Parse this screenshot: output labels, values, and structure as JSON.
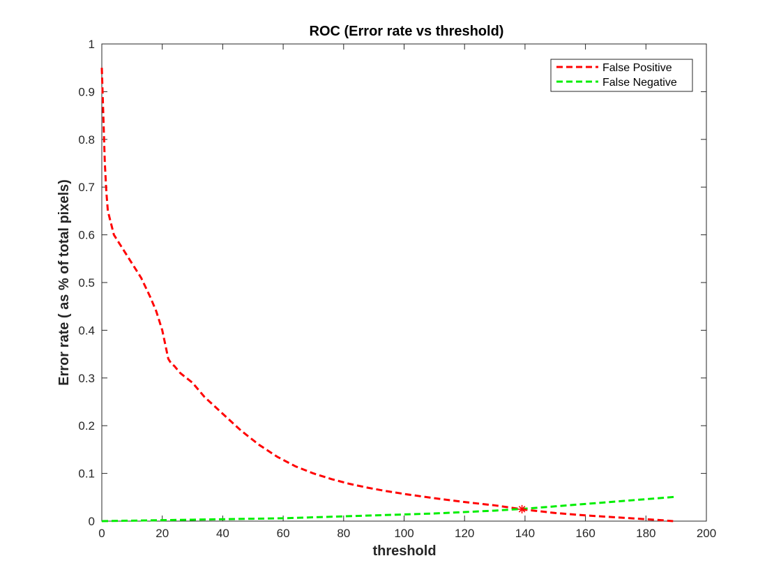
{
  "chart_data": {
    "type": "line",
    "title": "ROC (Error rate vs threshold)",
    "xlabel": "threshold",
    "ylabel": "Error rate ( as % of total pixels)",
    "xlim": [
      0,
      200
    ],
    "ylim": [
      0,
      1
    ],
    "x_ticks": [
      "0",
      "20",
      "40",
      "60",
      "80",
      "100",
      "120",
      "140",
      "160",
      "180",
      "200"
    ],
    "y_ticks": [
      "0",
      "0.1",
      "0.2",
      "0.3",
      "0.4",
      "0.5",
      "0.6",
      "0.7",
      "0.8",
      "0.9",
      "1"
    ],
    "grid": false,
    "legend_position": "top-right",
    "series": [
      {
        "name": "False Positive",
        "color": "#ff0000",
        "style": "dashed",
        "x": [
          0,
          0.5,
          1,
          1.5,
          2,
          4,
          7,
          10,
          13,
          16,
          18,
          20,
          21,
          22,
          23,
          24,
          26,
          30,
          34,
          40,
          46,
          52,
          58,
          64,
          70,
          76,
          82,
          88,
          94,
          100,
          110,
          120,
          130,
          140,
          150,
          160,
          170,
          180,
          185,
          189
        ],
        "y": [
          0.95,
          0.85,
          0.75,
          0.69,
          0.65,
          0.6,
          0.57,
          0.54,
          0.51,
          0.47,
          0.44,
          0.4,
          0.37,
          0.34,
          0.33,
          0.325,
          0.31,
          0.29,
          0.26,
          0.225,
          0.19,
          0.16,
          0.135,
          0.115,
          0.1,
          0.088,
          0.078,
          0.07,
          0.063,
          0.057,
          0.048,
          0.04,
          0.033,
          0.024,
          0.017,
          0.012,
          0.008,
          0.004,
          0.002,
          0.0
        ]
      },
      {
        "name": "False Negative",
        "color": "#00ee00",
        "style": "dashed",
        "x": [
          0,
          10,
          20,
          30,
          40,
          50,
          60,
          70,
          80,
          90,
          100,
          110,
          120,
          130,
          140,
          150,
          160,
          170,
          180,
          190
        ],
        "y": [
          0.0,
          0.001,
          0.002,
          0.003,
          0.004,
          0.005,
          0.006,
          0.008,
          0.01,
          0.012,
          0.014,
          0.016,
          0.019,
          0.022,
          0.026,
          0.031,
          0.036,
          0.041,
          0.046,
          0.051
        ]
      }
    ],
    "marker": {
      "x": 139,
      "y": 0.025,
      "symbol": "asterisk",
      "color": "#ff0000"
    }
  }
}
